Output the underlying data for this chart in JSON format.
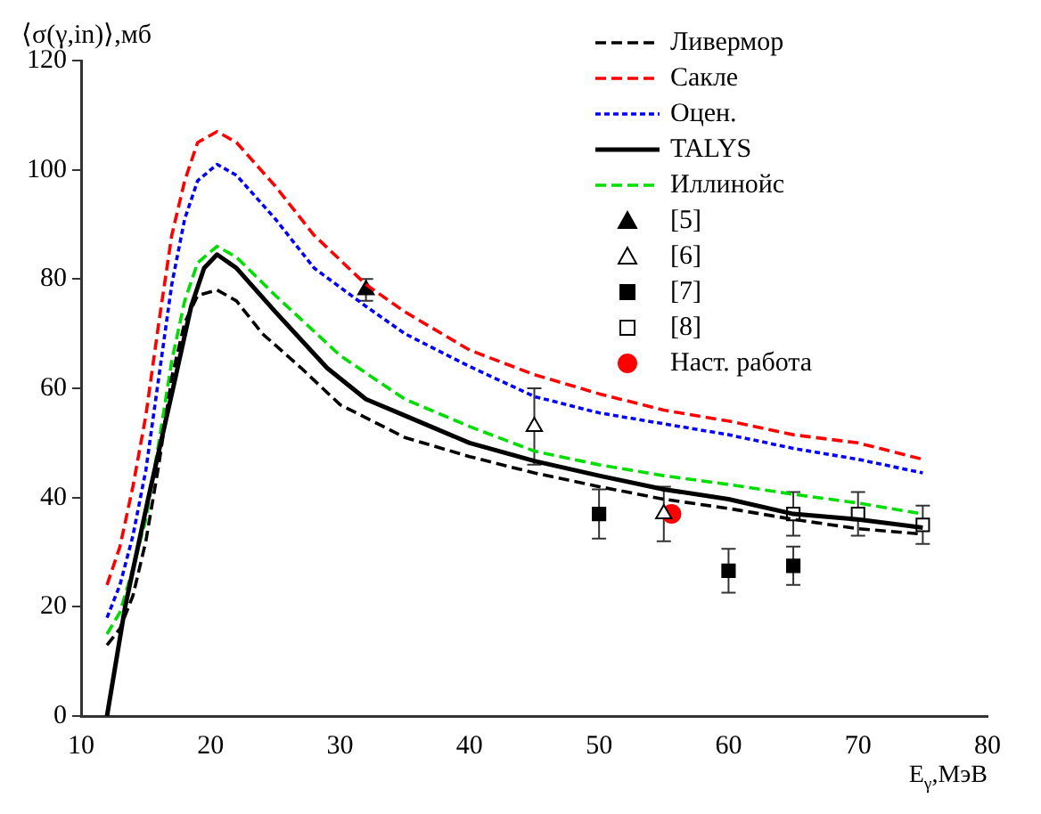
{
  "chart_data": {
    "type": "line",
    "xlabel": "E$_{γ}$,МэВ",
    "ylabel": "⟨σ(γ,in)⟩,мб",
    "xlim": [
      10,
      80
    ],
    "xticks": [
      10,
      20,
      30,
      40,
      50,
      60,
      70,
      80
    ],
    "ylim": [
      0,
      120
    ],
    "yticks": [
      0,
      20,
      40,
      60,
      80,
      100,
      120
    ],
    "grid": false,
    "legend": "top right",
    "series": [
      {
        "name": "Ливермор",
        "color": "#000000",
        "line_style": "dashed",
        "marker": "none",
        "x": [
          12,
          13,
          14,
          15,
          16,
          17,
          18,
          19,
          20.5,
          22,
          24,
          27,
          30,
          35,
          40,
          45,
          50,
          55,
          60,
          65,
          70,
          75
        ],
        "values": [
          13,
          16,
          22,
          32,
          46,
          62,
          72,
          77,
          78,
          76,
          70,
          63.7,
          57,
          51,
          47.5,
          44.5,
          42,
          39.7,
          38,
          36,
          34.3,
          33.3
        ]
      },
      {
        "name": "Сакле",
        "color": "#ff0000",
        "line_style": "dashed",
        "marker": "none",
        "x": [
          12,
          13,
          14,
          15,
          16,
          17,
          18,
          19,
          20.5,
          22,
          25,
          28,
          32,
          35,
          40,
          45,
          50,
          55,
          60,
          65,
          70,
          75
        ],
        "values": [
          24,
          31,
          42,
          55,
          72,
          88,
          98,
          105,
          107,
          105,
          97,
          88,
          79,
          74,
          67,
          62.5,
          59,
          56,
          54,
          51.5,
          50,
          47
        ]
      },
      {
        "name": "Оцен.",
        "color": "#0000ff",
        "line_style": "dotted",
        "marker": "none",
        "x": [
          12,
          13,
          14,
          15,
          16,
          17,
          18,
          19,
          20.5,
          22,
          25,
          28,
          32,
          35,
          40,
          45,
          50,
          55,
          60,
          65,
          70,
          75
        ],
        "values": [
          18,
          24,
          33,
          45,
          62,
          79,
          91,
          98,
          101,
          99,
          91,
          82,
          75,
          70,
          64,
          58.5,
          55.5,
          53.5,
          51.5,
          49,
          47,
          44.5
        ]
      },
      {
        "name": "TALYS",
        "color": "#000000",
        "line_style": "solid",
        "marker": "none",
        "x": [
          12,
          13.4,
          15.2,
          17.1,
          18.5,
          19.5,
          20.5,
          22,
          25,
          29,
          32,
          35,
          40,
          45,
          50,
          55,
          60,
          65,
          70,
          75
        ],
        "values": [
          0,
          20,
          40,
          60,
          75,
          82,
          84.5,
          82,
          74,
          63.7,
          58,
          55,
          50,
          46.7,
          44,
          41.5,
          39.7,
          37,
          36,
          34.5
        ]
      },
      {
        "name": "Иллинойс",
        "color": "#00dd00",
        "line_style": "dashed",
        "marker": "none",
        "x": [
          12,
          13,
          14,
          15,
          16,
          17,
          18,
          19,
          20.5,
          22,
          25,
          30,
          35,
          40,
          45,
          50,
          55,
          60,
          65,
          70,
          75
        ],
        "values": [
          15,
          19,
          27,
          36,
          50,
          65,
          76,
          83,
          86,
          84,
          77,
          66,
          58,
          53,
          48.5,
          46,
          44,
          42.4,
          40.6,
          39,
          37
        ]
      },
      {
        "name": "[5]",
        "type": "scatter",
        "color": "#000000",
        "marker": "triangle",
        "x": [
          32
        ],
        "values": [
          78
        ],
        "errors": [
          2
        ]
      },
      {
        "name": "[6]",
        "type": "scatter",
        "color": "#ffffff",
        "marker": "triangle",
        "x": [
          45,
          55
        ],
        "values": [
          53,
          37
        ],
        "errors": [
          7,
          5
        ]
      },
      {
        "name": "[7]",
        "type": "scatter",
        "color": "#000000",
        "marker": "square",
        "x": [
          50,
          60,
          65
        ],
        "values": [
          37,
          26.6,
          27.5
        ],
        "errors": [
          4.5,
          4,
          3.5
        ]
      },
      {
        "name": "[8]",
        "type": "scatter",
        "color": "#ffffff",
        "marker": "square",
        "x": [
          65,
          70,
          75
        ],
        "values": [
          37,
          37,
          35
        ],
        "errors": [
          4,
          4,
          3.5
        ]
      },
      {
        "name": "Наст. работа",
        "type": "scatter",
        "color": "#ff0000",
        "marker": "circle",
        "x": [
          55.6
        ],
        "values": [
          37
        ]
      }
    ]
  }
}
